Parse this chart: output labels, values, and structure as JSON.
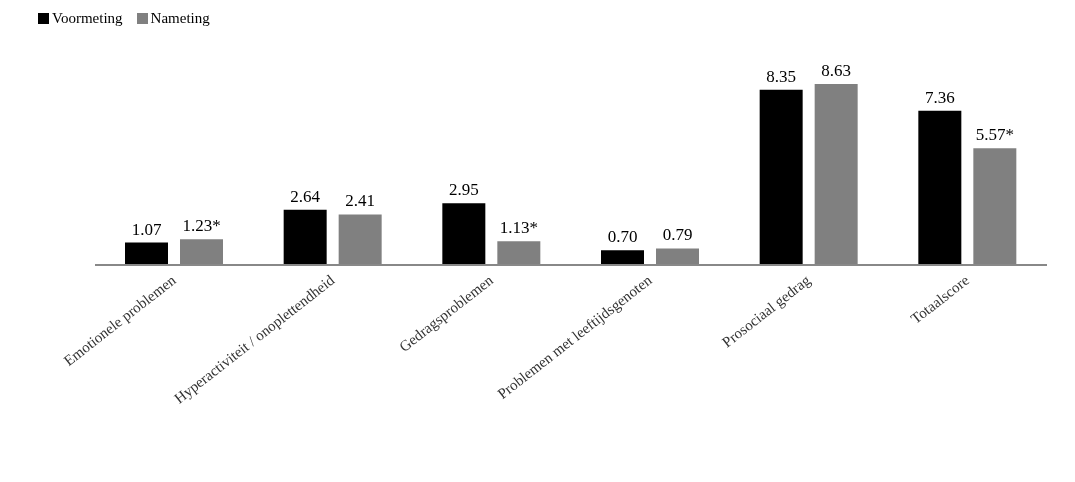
{
  "chart_data": {
    "type": "bar",
    "categories": [
      "Emotionele problemen",
      "Hyperactiviteit / onoplettendheid",
      "Gedragsproblemen",
      "Problemen met leeftijdsgenoten",
      "Prosociaal gedrag",
      "Totaalscore"
    ],
    "series": [
      {
        "name": "Voormeting",
        "color": "#000000",
        "values": [
          1.07,
          2.64,
          2.95,
          0.7,
          8.35,
          7.36
        ],
        "value_labels": [
          "1.07",
          "2.64",
          "2.95",
          "0.70",
          "8.35",
          "7.36"
        ]
      },
      {
        "name": "Nameting",
        "color": "#808080",
        "values": [
          1.23,
          2.41,
          1.13,
          0.79,
          8.63,
          5.57
        ],
        "value_labels": [
          "1.23*",
          "2.41",
          "1.13*",
          "0.79",
          "8.63",
          "5.57*"
        ]
      }
    ],
    "legend": "top left",
    "grid": false
  }
}
